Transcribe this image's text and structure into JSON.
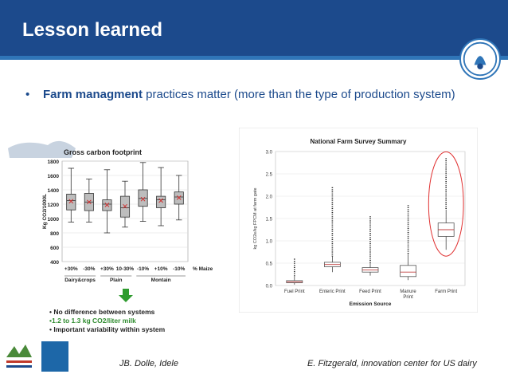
{
  "header": {
    "title": "Lesson learned"
  },
  "bullet": {
    "marker": "•",
    "bold": "Farm managment",
    "rest": " practices matter (more than the type of production system)"
  },
  "left_chart": {
    "title": "Gross carbon footprint",
    "ylabel": "Kg CO2/1000L",
    "xunit": "% Maize",
    "groups": [
      "Dairy&crops",
      "Plain",
      "Montain"
    ],
    "notes": [
      "• No difference between systems",
      "•1.2 to 1.3 kg CO2/liter milk",
      "• Important variability within system"
    ],
    "note_colors": [
      "#222222",
      "#2e8b2e",
      "#222222"
    ]
  },
  "chart_data": [
    {
      "type": "box",
      "title": "Gross carbon footprint",
      "ylabel": "Kg CO2/1000L",
      "xlabel": "% Maize",
      "ylim": [
        400,
        1800
      ],
      "yticks": [
        400,
        600,
        800,
        1000,
        1200,
        1400,
        1600,
        1800
      ],
      "categories": [
        "+30%",
        "-30%",
        "+30%",
        "10-30%",
        "-10%",
        "+10%",
        "-10%"
      ],
      "boxes": [
        {
          "min": 950,
          "q1": 1120,
          "median": 1250,
          "q3": 1340,
          "max": 1700,
          "mean": 1240
        },
        {
          "min": 950,
          "q1": 1110,
          "median": 1230,
          "q3": 1350,
          "max": 1550,
          "mean": 1230
        },
        {
          "min": 800,
          "q1": 1110,
          "median": 1200,
          "q3": 1260,
          "max": 1680,
          "mean": 1190
        },
        {
          "min": 880,
          "q1": 1020,
          "median": 1150,
          "q3": 1310,
          "max": 1520,
          "mean": 1170
        },
        {
          "min": 960,
          "q1": 1170,
          "median": 1280,
          "q3": 1400,
          "max": 1780,
          "mean": 1270
        },
        {
          "min": 900,
          "q1": 1150,
          "median": 1260,
          "q3": 1310,
          "max": 1710,
          "mean": 1250
        },
        {
          "min": 980,
          "q1": 1200,
          "median": 1300,
          "q3": 1370,
          "max": 1600,
          "mean": 1290
        }
      ],
      "groups": [
        "Dairy&crops",
        "Plain",
        "Montain"
      ]
    },
    {
      "type": "box",
      "title": "National Farm Survey Summary",
      "ylabel": "kg CO2e/kg FPCM at farm gate",
      "xlabel": "Emission Source",
      "ylim": [
        0.0,
        3.0
      ],
      "yticks": [
        0.0,
        0.5,
        1.0,
        1.5,
        2.0,
        2.5,
        3.0
      ],
      "categories": [
        "Fuel Print",
        "Enteric Print",
        "Feed Print",
        "Manure Print",
        "Farm Print"
      ],
      "boxes": [
        {
          "min": 0.02,
          "q1": 0.06,
          "median": 0.08,
          "q3": 0.11,
          "max": 0.2,
          "outlier_max": 0.6
        },
        {
          "min": 0.3,
          "q1": 0.42,
          "median": 0.47,
          "q3": 0.52,
          "max": 0.65,
          "outlier_max": 2.2
        },
        {
          "min": 0.22,
          "q1": 0.3,
          "median": 0.35,
          "q3": 0.4,
          "max": 0.5,
          "outlier_max": 1.55
        },
        {
          "min": 0.12,
          "q1": 0.2,
          "median": 0.3,
          "q3": 0.45,
          "max": 0.7,
          "outlier_max": 1.8
        },
        {
          "min": 0.8,
          "q1": 1.1,
          "median": 1.25,
          "q3": 1.4,
          "max": 1.7,
          "outlier_max": 2.85
        }
      ]
    }
  ],
  "right_chart": {
    "title": "National Farm Survey Summary",
    "ylabel": "kg CO2e/kg FPCM at farm gate",
    "xlabel": "Emission Source",
    "highlight_color": "#e03030"
  },
  "footer": {
    "left_caption": "JB. Dolle, Idele",
    "right_caption": "E. Fitzgerald, innovation center for US dairy"
  },
  "colors": {
    "header": "#1c4a8c",
    "accent": "#2f75b8",
    "bullet_text": "#1c4a8c",
    "arrow": "#2e9b2e"
  },
  "logos": [
    "FIL IDF",
    "INSTITUT DE L'ELEVAGE",
    "Cniel"
  ]
}
